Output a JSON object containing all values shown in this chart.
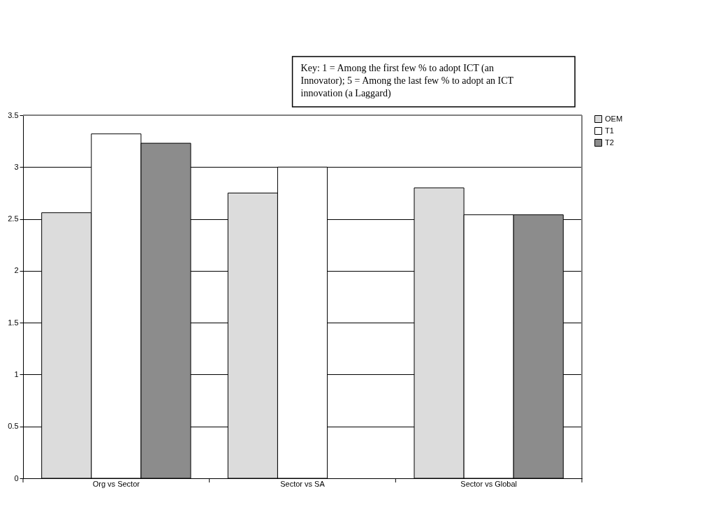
{
  "chart_data": {
    "type": "bar",
    "categories": [
      "Org vs Sector",
      "Sector vs SA",
      "Sector vs Global"
    ],
    "series": [
      {
        "name": "OEM",
        "color": "#dcdcdc",
        "values": [
          2.56,
          2.75,
          2.8
        ]
      },
      {
        "name": "T1",
        "color": "#ffffff",
        "values": [
          3.32,
          3.0,
          2.54
        ]
      },
      {
        "name": "T2",
        "color": "#8c8c8c",
        "values": [
          3.23,
          null,
          2.54
        ]
      }
    ],
    "ylim": [
      0,
      3.5
    ],
    "yticks": [
      0,
      0.5,
      1,
      1.5,
      2,
      2.5,
      3,
      3.5
    ],
    "grid": "y",
    "legend": "right",
    "annotations": [
      "Key: 1 = Among the first few % to adopt ICT (an Innovator); 5 = Among the last few % to adopt an ICT innovation (a Laggard)"
    ]
  }
}
